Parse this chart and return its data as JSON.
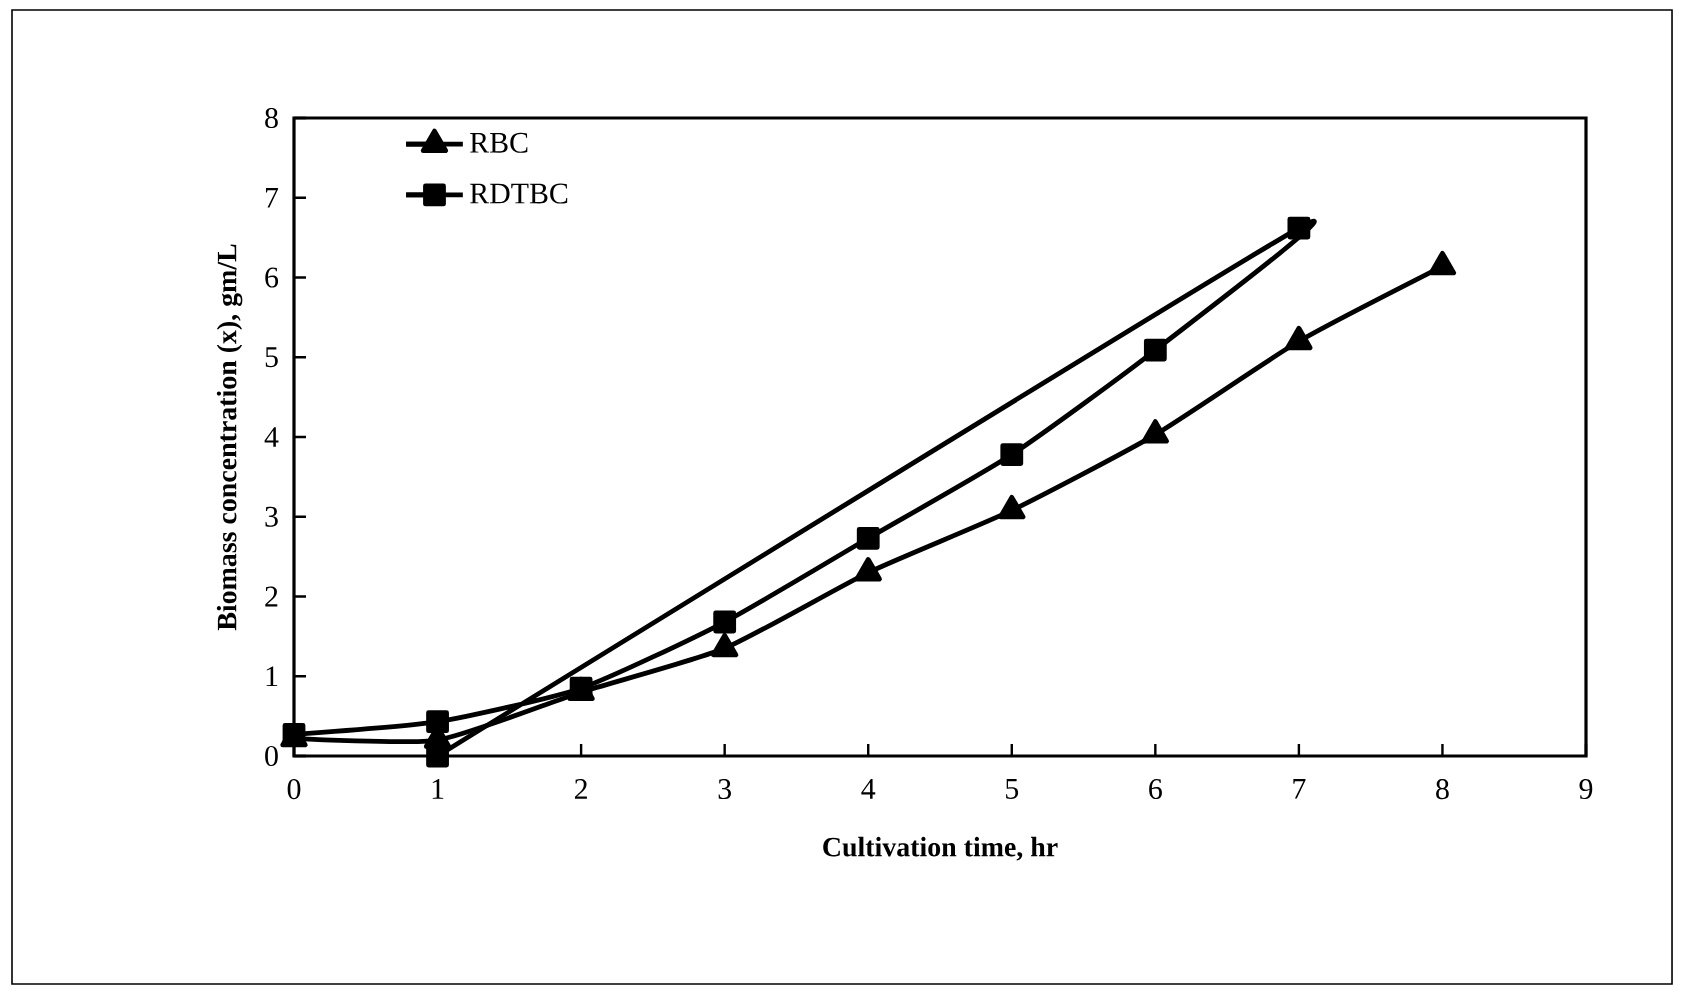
{
  "chart_data": {
    "type": "line",
    "xlabel": "Cultivation time, hr",
    "ylabel": "Biomass  concentration (x), gm/L",
    "xlim": [
      0,
      9
    ],
    "xticks": [
      0,
      1,
      2,
      3,
      4,
      5,
      6,
      7,
      8,
      9
    ],
    "ylim": [
      0,
      8
    ],
    "yticks": [
      0,
      1,
      2,
      3,
      4,
      5,
      6,
      7,
      8
    ],
    "grid": false,
    "legend": "top left",
    "line_style": "solid",
    "series": [
      {
        "name": "RBC",
        "color": "#000000",
        "marker": "triangle",
        "x": [
          0,
          1,
          2,
          3,
          4,
          5,
          6,
          7,
          8
        ],
        "values": [
          0.22,
          0.2,
          0.8,
          1.35,
          2.3,
          3.08,
          4.03,
          5.2,
          6.14
        ]
      },
      {
        "name": "RDTBC",
        "color": "#000000",
        "marker": "square",
        "x": [
          0,
          1,
          2,
          3,
          4,
          5,
          6,
          7,
          1
        ],
        "values": [
          0.27,
          0.43,
          0.85,
          1.68,
          2.73,
          3.78,
          5.09,
          6.62,
          0
        ]
      }
    ]
  }
}
